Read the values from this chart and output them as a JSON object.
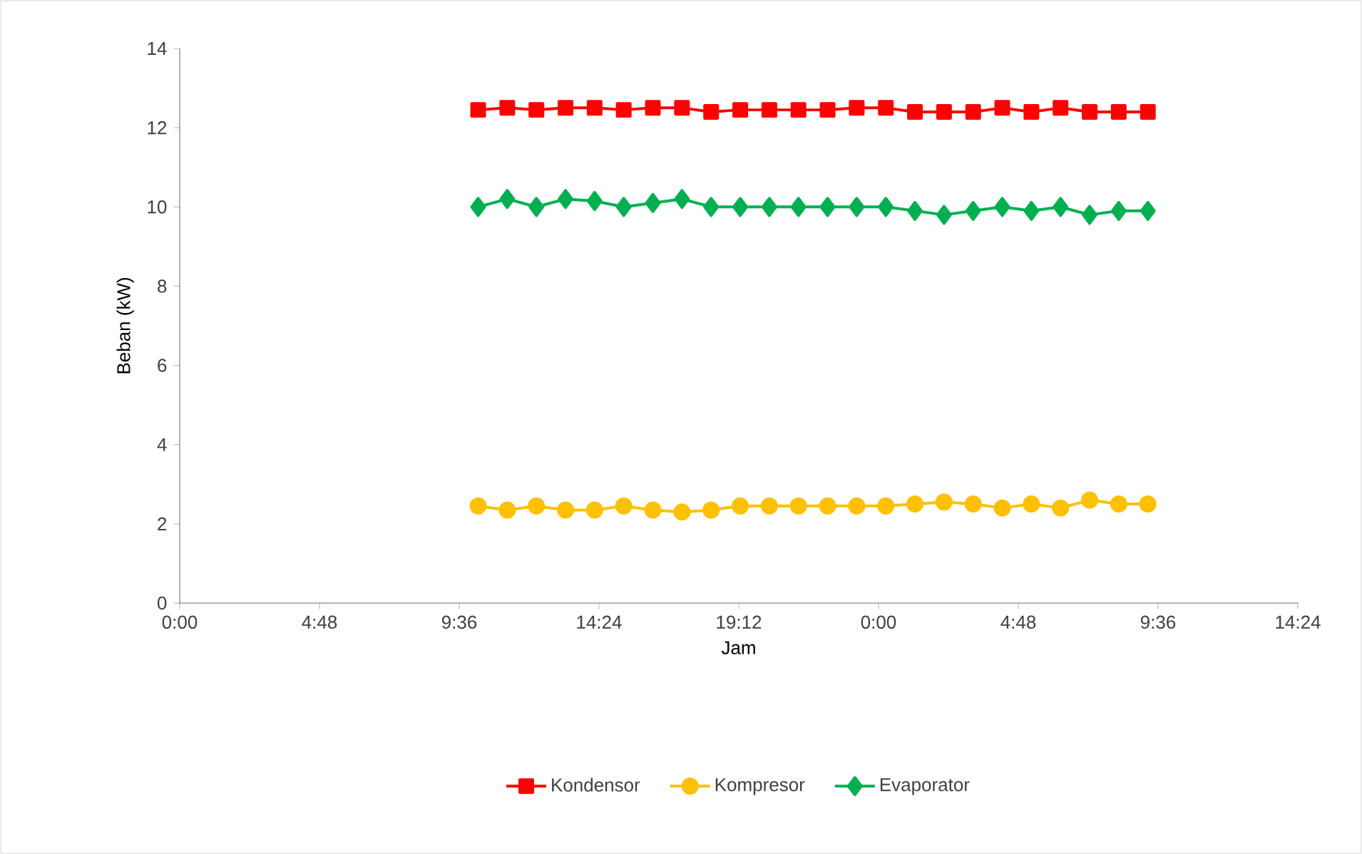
{
  "chart_data": {
    "type": "line",
    "xlabel": "Jam",
    "ylabel": "Beban (kW)",
    "x": [
      "2000-01-01T10:15",
      "2000-01-01T11:15",
      "2000-01-01T12:15",
      "2000-01-01T13:15",
      "2000-01-01T14:15",
      "2000-01-01T15:15",
      "2000-01-01T16:15",
      "2000-01-01T17:15",
      "2000-01-01T18:15",
      "2000-01-01T19:15",
      "2000-01-01T20:15",
      "2000-01-01T21:15",
      "2000-01-01T22:15",
      "2000-01-01T23:15",
      "2000-01-02T00:15",
      "2000-01-02T01:15",
      "2000-01-02T02:15",
      "2000-01-02T03:15",
      "2000-01-02T04:15",
      "2000-01-02T05:15",
      "2000-01-02T06:15",
      "2000-01-02T07:15",
      "2000-01-02T08:15",
      "2000-01-02T09:15"
    ],
    "series": [
      {
        "name": "Kondensor",
        "color": "#ff0000",
        "marker": "square",
        "values": [
          12.45,
          12.5,
          12.45,
          12.5,
          12.5,
          12.45,
          12.5,
          12.5,
          12.4,
          12.45,
          12.45,
          12.45,
          12.45,
          12.5,
          12.5,
          12.4,
          12.4,
          12.4,
          12.5,
          12.4,
          12.5,
          12.4,
          12.4,
          12.4
        ]
      },
      {
        "name": "Kompresor",
        "color": "#ffc000",
        "marker": "circle",
        "values": [
          2.45,
          2.35,
          2.45,
          2.35,
          2.35,
          2.45,
          2.35,
          2.3,
          2.35,
          2.45,
          2.45,
          2.45,
          2.45,
          2.45,
          2.45,
          2.5,
          2.55,
          2.5,
          2.4,
          2.5,
          2.4,
          2.6,
          2.5,
          2.5
        ]
      },
      {
        "name": "Evaporator",
        "color": "#00b050",
        "marker": "diamond",
        "values": [
          10.0,
          10.2,
          10.0,
          10.2,
          10.15,
          10.0,
          10.1,
          10.2,
          10.0,
          10.0,
          10.0,
          10.0,
          10.0,
          10.0,
          10.0,
          9.9,
          9.8,
          9.9,
          10.0,
          9.9,
          10.0,
          9.8,
          9.9,
          9.9
        ]
      }
    ],
    "xlim": [
      "2000-01-01T00:00",
      "2000-01-02T14:24"
    ],
    "xticks": [
      {
        "value": "2000-01-01T00:00",
        "label": "0:00"
      },
      {
        "value": "2000-01-01T04:48",
        "label": "4:48"
      },
      {
        "value": "2000-01-01T09:36",
        "label": "9:36"
      },
      {
        "value": "2000-01-01T14:24",
        "label": "14:24"
      },
      {
        "value": "2000-01-01T19:12",
        "label": "19:12"
      },
      {
        "value": "2000-01-02T00:00",
        "label": "0:00"
      },
      {
        "value": "2000-01-02T04:48",
        "label": "4:48"
      },
      {
        "value": "2000-01-02T09:36",
        "label": "9:36"
      },
      {
        "value": "2000-01-02T14:24",
        "label": "14:24"
      }
    ],
    "ylim": [
      0,
      14
    ],
    "yticks": [
      0,
      2,
      4,
      6,
      8,
      10,
      12,
      14
    ],
    "grid": false,
    "legend": "bottom",
    "line_style": "solid"
  }
}
